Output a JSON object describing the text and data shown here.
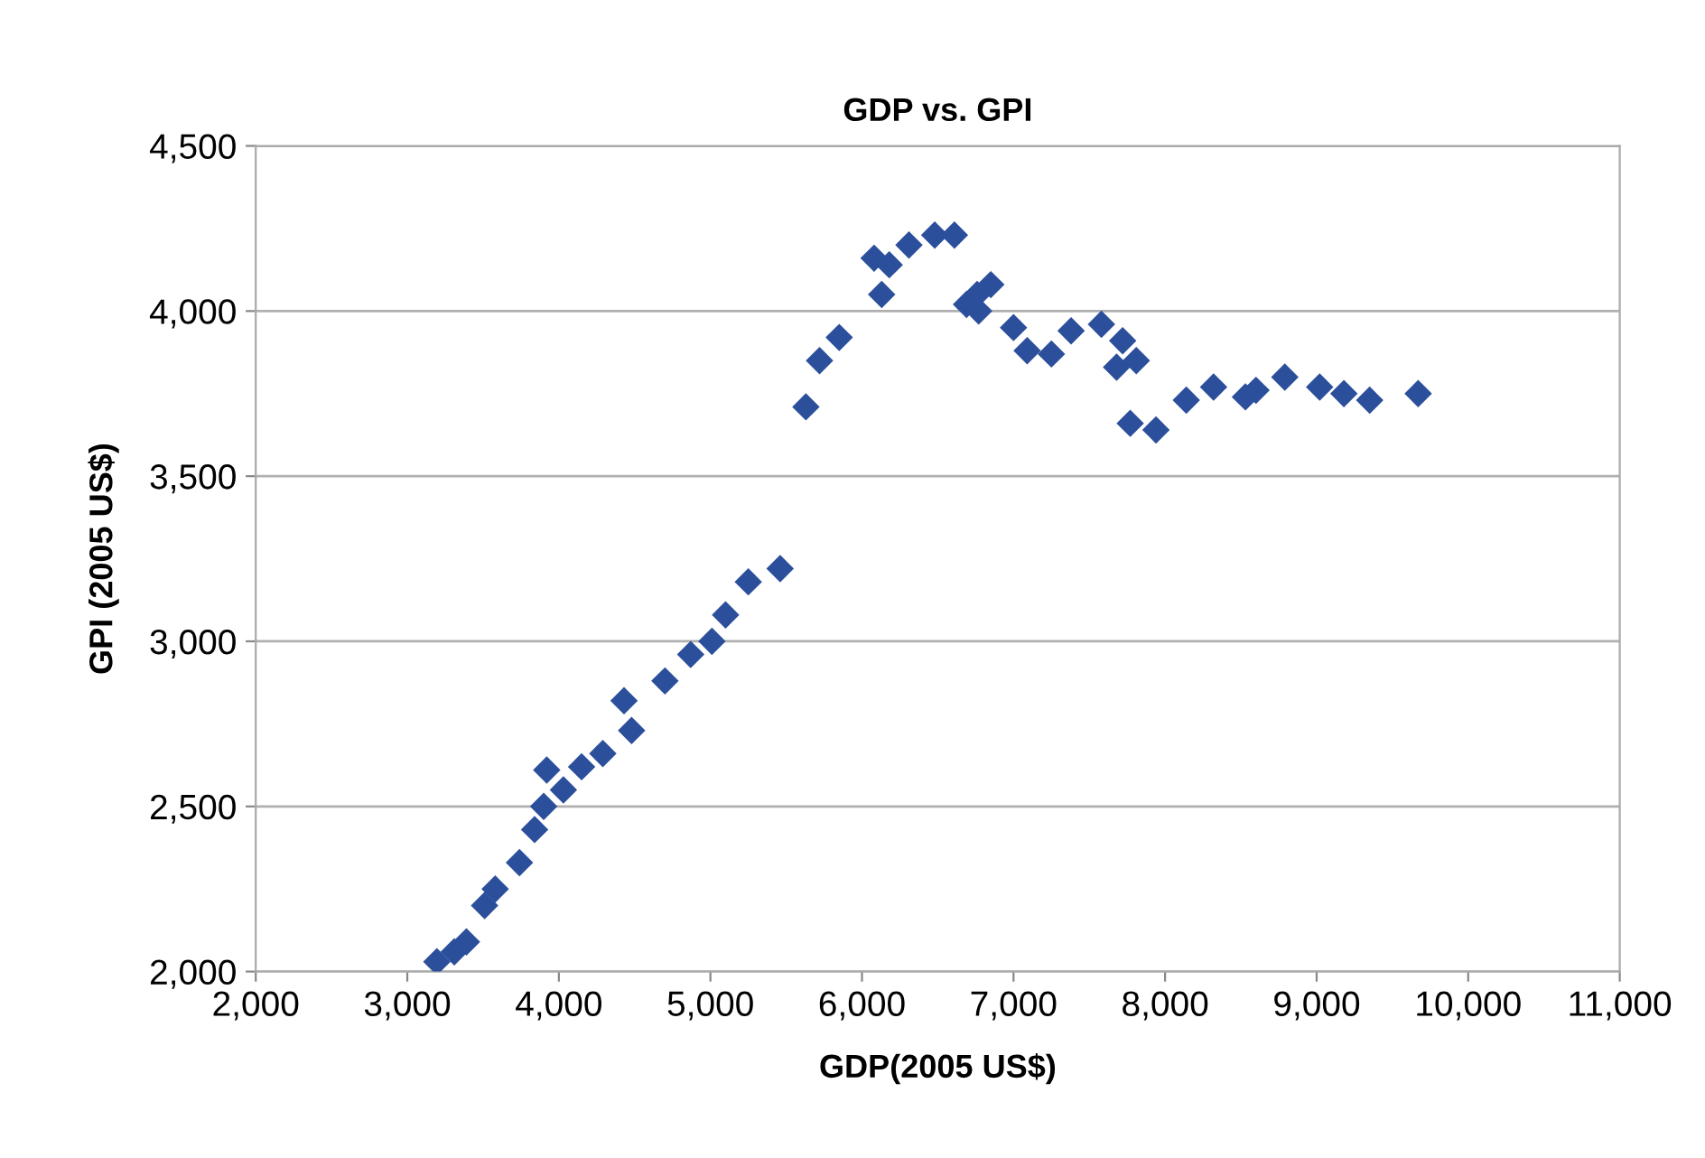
{
  "chart_data": {
    "type": "scatter",
    "title": "GDP vs. GPI",
    "xlabel": "GDP(2005 US$)",
    "ylabel": "GPI (2005 US$)",
    "x": [
      3195,
      3310,
      3390,
      3510,
      3580,
      3740,
      3840,
      3900,
      3920,
      4030,
      4150,
      4290,
      4430,
      4480,
      4700,
      4870,
      5010,
      5100,
      5250,
      5460,
      5630,
      5720,
      5850,
      6080,
      6180,
      6130,
      6310,
      6480,
      6610,
      6690,
      6760,
      6770,
      6850,
      7000,
      7090,
      7250,
      7380,
      7580,
      7720,
      7680,
      7810,
      7770,
      7940,
      8140,
      8320,
      8530,
      8600,
      8790,
      9020,
      9180,
      9350,
      9670
    ],
    "series": [
      {
        "color": "#2b4f9b",
        "values": [
          2030,
          2060,
          2090,
          2200,
          2250,
          2330,
          2430,
          2500,
          2610,
          2550,
          2620,
          2660,
          2820,
          2730,
          2880,
          2960,
          3000,
          3080,
          3180,
          3220,
          3710,
          3850,
          3920,
          4160,
          4140,
          4050,
          4200,
          4230,
          4230,
          4020,
          4050,
          4000,
          4080,
          3950,
          3880,
          3870,
          3940,
          3960,
          3910,
          3830,
          3850,
          3660,
          3640,
          3730,
          3770,
          3740,
          3760,
          3800,
          3770,
          3750,
          3730,
          3750
        ]
      }
    ],
    "xlim": [
      2000,
      11000
    ],
    "ylim": [
      2000,
      4500
    ],
    "xticks": [
      {
        "value": 2000,
        "label": "2,000"
      },
      {
        "value": 3000,
        "label": "3,000"
      },
      {
        "value": 4000,
        "label": "4,000"
      },
      {
        "value": 5000,
        "label": "5,000"
      },
      {
        "value": 6000,
        "label": "6,000"
      },
      {
        "value": 7000,
        "label": "7,000"
      },
      {
        "value": 8000,
        "label": "8,000"
      },
      {
        "value": 9000,
        "label": "9,000"
      },
      {
        "value": 10000,
        "label": "10,000"
      },
      {
        "value": 11000,
        "label": "11,000"
      }
    ],
    "yticks": [
      {
        "value": 2000,
        "label": "2,000"
      },
      {
        "value": 2500,
        "label": "2,500"
      },
      {
        "value": 3000,
        "label": "3,000"
      },
      {
        "value": 3500,
        "label": "3,500"
      },
      {
        "value": 4000,
        "label": "4,000"
      },
      {
        "value": 4500,
        "label": "4,500"
      }
    ],
    "grid": "y",
    "marker": "diamond"
  }
}
